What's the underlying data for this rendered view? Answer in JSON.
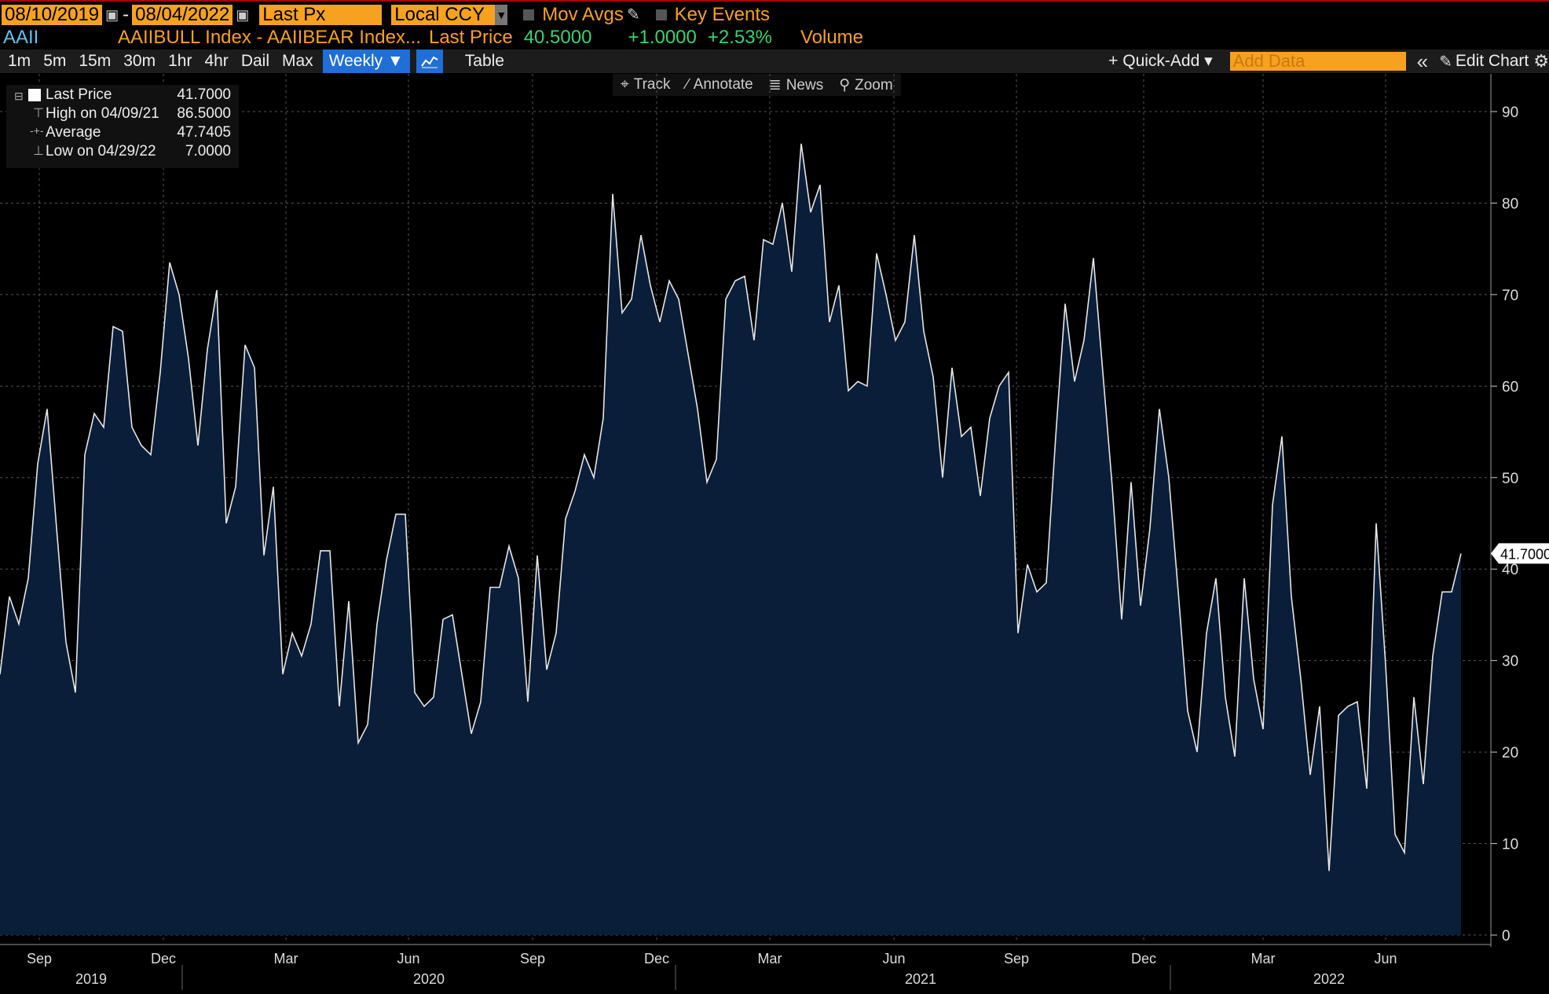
{
  "toolbar": {
    "start_date": "08/10/2019",
    "end_date": "08/04/2022",
    "dash": "-",
    "field": "Last Px",
    "currency": "Local CCY",
    "mov_avgs": "Mov Avgs",
    "key_events": "Key Events"
  },
  "security": {
    "ticker": "AAII",
    "name": "AAIIBULL Index - AAIIBEAR Index...",
    "last_price_label": "Last Price",
    "last_price": "40.5000",
    "change": "+1.0000",
    "change_pct": "+2.53%",
    "volume_label": "Volume"
  },
  "periods": [
    "1m",
    "5m",
    "15m",
    "30m",
    "1hr",
    "4hr",
    "Dail",
    "Max"
  ],
  "frequency": "Weekly ▼",
  "table_label": "Table",
  "quick_add": "+ Quick-Add ▾",
  "add_data_placeholder": "Add Data",
  "collapse": "«",
  "edit_chart": "Edit Chart",
  "tools": {
    "track": "Track",
    "annotate": "Annotate",
    "news": "News",
    "zoom": "Zoom"
  },
  "legend": {
    "last_label": "Last Price",
    "last_value": "41.7000",
    "high_label": "High on 04/09/21",
    "high_value": "86.5000",
    "avg_label": "Average",
    "avg_value": "47.7405",
    "low_label": "Low on 04/29/22",
    "low_value": "7.0000"
  },
  "colors": {
    "area": "#0a1e3a",
    "line": "#e6e6e6",
    "accent": "#f7a120",
    "positive": "#3bd16f"
  },
  "chart_data": {
    "type": "area",
    "ylim": [
      0,
      90
    ],
    "yticks": [
      0,
      10,
      20,
      30,
      40,
      50,
      60,
      70,
      80,
      90
    ],
    "last_value_label": "41.7000",
    "x_month_labels": [
      "Sep",
      "Dec",
      "Mar",
      "Jun",
      "Sep",
      "Dec",
      "Mar",
      "Jun",
      "Sep",
      "Dec",
      "Mar",
      "Jun"
    ],
    "x_year_labels": [
      "2019",
      "2020",
      "2021",
      "2022"
    ],
    "series": [
      {
        "values": [
          28.5,
          37,
          34,
          39,
          51.5,
          57.5,
          44.5,
          32,
          26.5,
          52.5,
          57,
          55.5,
          66.5,
          66,
          55.5,
          53.5,
          52.5,
          61.5,
          73.5,
          70,
          63,
          53.5,
          64,
          70.5,
          45,
          49,
          64.5,
          62,
          41.5,
          49,
          28.5,
          33,
          30.5,
          34,
          42,
          42,
          25,
          36.5,
          21,
          23,
          34,
          41,
          46,
          46,
          26.5,
          25,
          26,
          34.5,
          35,
          28.5,
          22,
          25.5,
          38,
          38,
          42.5,
          39,
          25.5,
          41.5,
          29,
          33,
          45.5,
          48.5,
          52.5,
          50,
          56.5,
          81,
          68,
          69.5,
          76.5,
          71,
          67,
          71.5,
          69.5,
          63.5,
          57.5,
          49.5,
          52,
          69.5,
          71.5,
          72,
          65,
          76,
          75.5,
          80,
          72.5,
          86.5,
          79,
          82,
          67,
          71,
          59.5,
          60.5,
          60,
          74.5,
          70,
          65,
          67,
          76.5,
          66,
          61,
          50,
          62,
          54.5,
          55.5,
          48,
          56.5,
          60,
          61.5,
          33,
          40.5,
          37.5,
          38.5,
          54.5,
          69,
          60.5,
          65,
          74,
          61.5,
          49,
          34.5,
          49.5,
          36,
          44.5,
          57.5,
          50,
          37.5,
          24.5,
          20,
          33,
          39,
          26,
          19.5,
          39,
          28,
          22.5,
          47,
          54.5,
          37,
          28,
          17.5,
          25,
          7,
          24,
          25,
          25.5,
          16,
          45,
          29.5,
          11,
          9,
          26,
          16.5,
          30.5,
          37.5,
          37.5,
          41.7
        ]
      }
    ]
  }
}
